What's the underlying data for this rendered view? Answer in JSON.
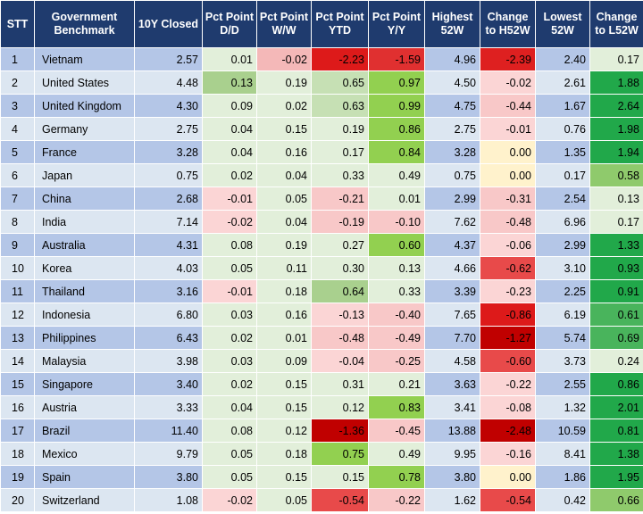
{
  "columns": [
    "STT",
    "Government Benchmark",
    "10Y Closed",
    "Pct Point D/D",
    "Pct Point W/W",
    "Pct Point YTD",
    "Pct Point Y/Y",
    "Highest 52W",
    "Change to H52W",
    "Lowest 52W",
    "Change to L52W"
  ],
  "rows": [
    [
      "1",
      "Vietnam",
      "2.57",
      "0.01",
      "-0.02",
      "-2.23",
      "-1.59",
      "4.96",
      "-2.39",
      "2.40",
      "0.17"
    ],
    [
      "2",
      "United States",
      "4.48",
      "0.13",
      "0.19",
      "0.65",
      "0.97",
      "4.50",
      "-0.02",
      "2.61",
      "1.88"
    ],
    [
      "3",
      "United Kingdom",
      "4.30",
      "0.09",
      "0.02",
      "0.63",
      "0.99",
      "4.75",
      "-0.44",
      "1.67",
      "2.64"
    ],
    [
      "4",
      "Germany",
      "2.75",
      "0.04",
      "0.15",
      "0.19",
      "0.86",
      "2.75",
      "-0.01",
      "0.76",
      "1.98"
    ],
    [
      "5",
      "France",
      "3.28",
      "0.04",
      "0.16",
      "0.17",
      "0.84",
      "3.28",
      "0.00",
      "1.35",
      "1.94"
    ],
    [
      "6",
      "Japan",
      "0.75",
      "0.02",
      "0.04",
      "0.33",
      "0.49",
      "0.75",
      "0.00",
      "0.17",
      "0.58"
    ],
    [
      "7",
      "China",
      "2.68",
      "-0.01",
      "0.05",
      "-0.21",
      "0.01",
      "2.99",
      "-0.31",
      "2.54",
      "0.13"
    ],
    [
      "8",
      "India",
      "7.14",
      "-0.02",
      "0.04",
      "-0.19",
      "-0.10",
      "7.62",
      "-0.48",
      "6.96",
      "0.17"
    ],
    [
      "9",
      "Australia",
      "4.31",
      "0.08",
      "0.19",
      "0.27",
      "0.60",
      "4.37",
      "-0.06",
      "2.99",
      "1.33"
    ],
    [
      "10",
      "Korea",
      "4.03",
      "0.05",
      "0.11",
      "0.30",
      "0.13",
      "4.66",
      "-0.62",
      "3.10",
      "0.93"
    ],
    [
      "11",
      "Thailand",
      "3.16",
      "-0.01",
      "0.18",
      "0.64",
      "0.33",
      "3.39",
      "-0.23",
      "2.25",
      "0.91"
    ],
    [
      "12",
      "Indonesia",
      "6.80",
      "0.03",
      "0.16",
      "-0.13",
      "-0.40",
      "7.65",
      "-0.86",
      "6.19",
      "0.61"
    ],
    [
      "13",
      "Philippines",
      "6.43",
      "0.02",
      "0.01",
      "-0.48",
      "-0.49",
      "7.70",
      "-1.27",
      "5.74",
      "0.69"
    ],
    [
      "14",
      "Malaysia",
      "3.98",
      "0.03",
      "0.09",
      "-0.04",
      "-0.25",
      "4.58",
      "-0.60",
      "3.73",
      "0.24"
    ],
    [
      "15",
      "Singapore",
      "3.40",
      "0.02",
      "0.15",
      "0.31",
      "0.21",
      "3.63",
      "-0.22",
      "2.55",
      "0.86"
    ],
    [
      "16",
      "Austria",
      "3.33",
      "0.04",
      "0.15",
      "0.12",
      "0.83",
      "3.41",
      "-0.08",
      "1.32",
      "2.01"
    ],
    [
      "17",
      "Brazil",
      "11.40",
      "0.08",
      "0.12",
      "-1.36",
      "-0.45",
      "13.88",
      "-2.48",
      "10.59",
      "0.81"
    ],
    [
      "18",
      "Mexico",
      "9.79",
      "0.05",
      "0.18",
      "0.75",
      "0.49",
      "9.95",
      "-0.16",
      "8.41",
      "1.38"
    ],
    [
      "19",
      "Spain",
      "3.80",
      "0.05",
      "0.15",
      "0.15",
      "0.78",
      "3.80",
      "0.00",
      "1.86",
      "1.95"
    ],
    [
      "20",
      "Switzerland",
      "1.08",
      "-0.02",
      "0.05",
      "-0.54",
      "-0.22",
      "1.62",
      "-0.54",
      "0.42",
      "0.66"
    ]
  ],
  "cell_colors": [
    [
      "#b4c6e7",
      "#b4c6e7",
      "#b4c6e7",
      "#e2efda",
      "#f4b8b8",
      "#dd1a1a",
      "#e03030",
      "#b4c6e7",
      "#de2020",
      "#b4c6e7",
      "#e2efda"
    ],
    [
      "#dce6f1",
      "#dce6f1",
      "#dce6f1",
      "#a9d08e",
      "#e2efda",
      "#c6e0b4",
      "#92d050",
      "#dce6f1",
      "#fbd5d5",
      "#dce6f1",
      "#21a84a"
    ],
    [
      "#b4c6e7",
      "#b4c6e7",
      "#b4c6e7",
      "#e2efda",
      "#e2efda",
      "#c6e0b4",
      "#92d050",
      "#b4c6e7",
      "#f8c8c8",
      "#b4c6e7",
      "#21a84a"
    ],
    [
      "#dce6f1",
      "#dce6f1",
      "#dce6f1",
      "#e2efda",
      "#e2efda",
      "#e2efda",
      "#92d050",
      "#dce6f1",
      "#fbd5d5",
      "#dce6f1",
      "#21a84a"
    ],
    [
      "#b4c6e7",
      "#b4c6e7",
      "#b4c6e7",
      "#e2efda",
      "#e2efda",
      "#e2efda",
      "#92d050",
      "#b4c6e7",
      "#fff2cc",
      "#b4c6e7",
      "#21a84a"
    ],
    [
      "#dce6f1",
      "#dce6f1",
      "#dce6f1",
      "#e2efda",
      "#e2efda",
      "#e2efda",
      "#e2efda",
      "#dce6f1",
      "#fff2cc",
      "#dce6f1",
      "#8fca6c"
    ],
    [
      "#b4c6e7",
      "#b4c6e7",
      "#b4c6e7",
      "#fbd5d5",
      "#e2efda",
      "#f8c8c8",
      "#e2efda",
      "#b4c6e7",
      "#f8c8c8",
      "#b4c6e7",
      "#e2efda"
    ],
    [
      "#dce6f1",
      "#dce6f1",
      "#dce6f1",
      "#fbd5d5",
      "#e2efda",
      "#f8c8c8",
      "#f8c8c8",
      "#dce6f1",
      "#f8c8c8",
      "#dce6f1",
      "#e2efda"
    ],
    [
      "#b4c6e7",
      "#b4c6e7",
      "#b4c6e7",
      "#e2efda",
      "#e2efda",
      "#e2efda",
      "#92d050",
      "#b4c6e7",
      "#fbd5d5",
      "#b4c6e7",
      "#21a84a"
    ],
    [
      "#dce6f1",
      "#dce6f1",
      "#dce6f1",
      "#e2efda",
      "#e2efda",
      "#e2efda",
      "#e2efda",
      "#dce6f1",
      "#e84a4a",
      "#dce6f1",
      "#21a84a"
    ],
    [
      "#b4c6e7",
      "#b4c6e7",
      "#b4c6e7",
      "#fbd5d5",
      "#e2efda",
      "#a9d08e",
      "#e2efda",
      "#b4c6e7",
      "#fbd5d5",
      "#b4c6e7",
      "#21a84a"
    ],
    [
      "#dce6f1",
      "#dce6f1",
      "#dce6f1",
      "#e2efda",
      "#e2efda",
      "#fbd5d5",
      "#f8c8c8",
      "#dce6f1",
      "#dd1a1a",
      "#dce6f1",
      "#49b45c"
    ],
    [
      "#b4c6e7",
      "#b4c6e7",
      "#b4c6e7",
      "#e2efda",
      "#e2efda",
      "#f8c8c8",
      "#f8c8c8",
      "#b4c6e7",
      "#c00000",
      "#b4c6e7",
      "#49b45c"
    ],
    [
      "#dce6f1",
      "#dce6f1",
      "#dce6f1",
      "#e2efda",
      "#e2efda",
      "#fbd5d5",
      "#f8c8c8",
      "#dce6f1",
      "#e84a4a",
      "#dce6f1",
      "#e2efda"
    ],
    [
      "#b4c6e7",
      "#b4c6e7",
      "#b4c6e7",
      "#e2efda",
      "#e2efda",
      "#e2efda",
      "#e2efda",
      "#b4c6e7",
      "#fbd5d5",
      "#b4c6e7",
      "#21a84a"
    ],
    [
      "#dce6f1",
      "#dce6f1",
      "#dce6f1",
      "#e2efda",
      "#e2efda",
      "#e2efda",
      "#92d050",
      "#dce6f1",
      "#fbd5d5",
      "#dce6f1",
      "#21a84a"
    ],
    [
      "#b4c6e7",
      "#b4c6e7",
      "#b4c6e7",
      "#e2efda",
      "#e2efda",
      "#c00000",
      "#f8c8c8",
      "#b4c6e7",
      "#c00000",
      "#b4c6e7",
      "#21a84a"
    ],
    [
      "#dce6f1",
      "#dce6f1",
      "#dce6f1",
      "#e2efda",
      "#e2efda",
      "#92d050",
      "#e2efda",
      "#dce6f1",
      "#fbd5d5",
      "#dce6f1",
      "#21a84a"
    ],
    [
      "#b4c6e7",
      "#b4c6e7",
      "#b4c6e7",
      "#e2efda",
      "#e2efda",
      "#e2efda",
      "#92d050",
      "#b4c6e7",
      "#fff2cc",
      "#b4c6e7",
      "#21a84a"
    ],
    [
      "#dce6f1",
      "#dce6f1",
      "#dce6f1",
      "#fbd5d5",
      "#e2efda",
      "#e84a4a",
      "#f8c8c8",
      "#dce6f1",
      "#e84a4a",
      "#dce6f1",
      "#8fca6c"
    ]
  ],
  "colors": {
    "header_bg": "#1f3b6e",
    "header_text": "#ffffff",
    "row_odd": "#b4c6e7",
    "row_even": "#dce6f1"
  }
}
